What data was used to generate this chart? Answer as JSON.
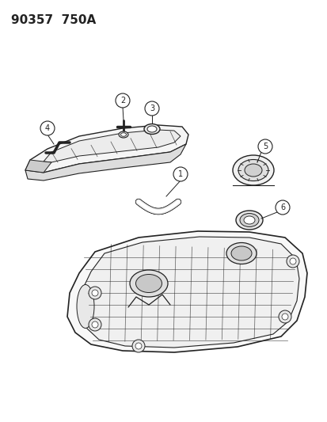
{
  "title": "90357  750A",
  "bg_color": "#ffffff",
  "line_color": "#222222"
}
